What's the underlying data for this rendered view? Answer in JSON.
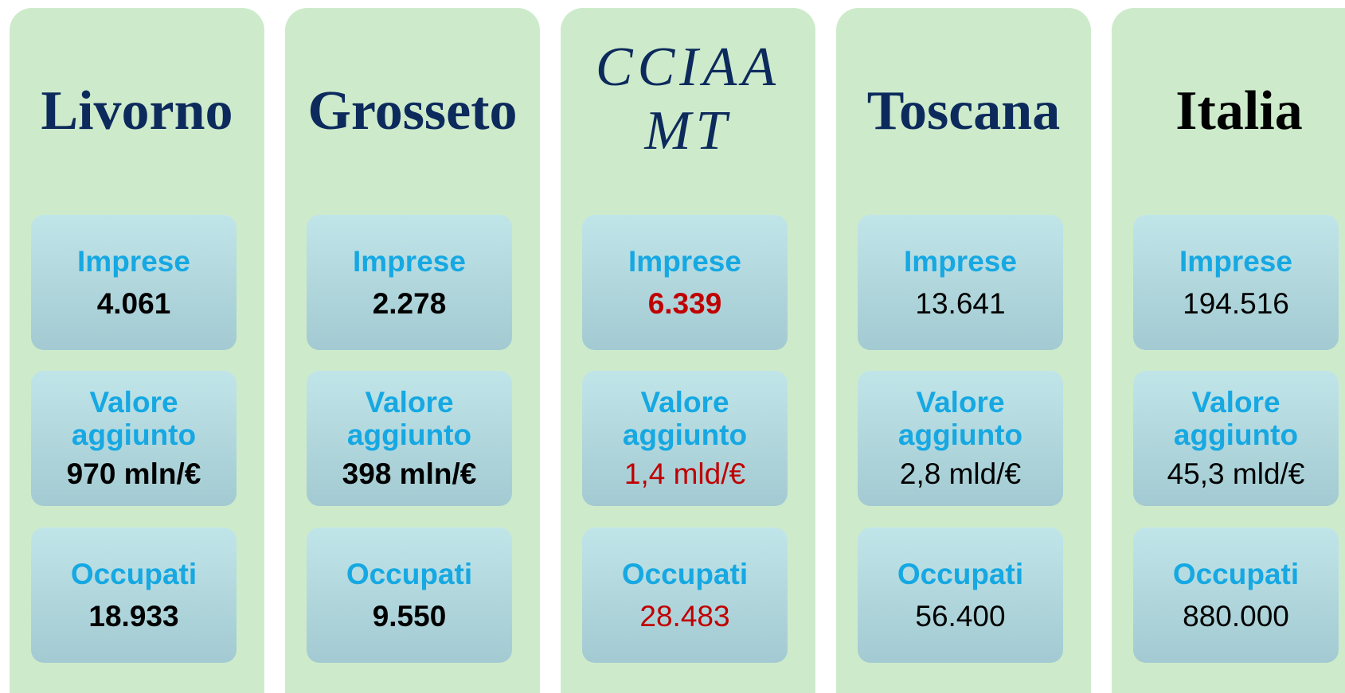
{
  "columns": [
    {
      "title": "Livorno",
      "metrics": [
        {
          "label": "Imprese",
          "value": "4.061"
        },
        {
          "label": "Valore aggiunto",
          "value": "970 mln/€"
        },
        {
          "label": "Occupati",
          "value": "18.933"
        }
      ]
    },
    {
      "title": "Grosseto",
      "metrics": [
        {
          "label": "Imprese",
          "value": "2.278"
        },
        {
          "label": "Valore aggiunto",
          "value": "398 mln/€"
        },
        {
          "label": "Occupati",
          "value": "9.550"
        }
      ]
    },
    {
      "title": "CCIAA MT",
      "metrics": [
        {
          "label": "Imprese",
          "value": "6.339"
        },
        {
          "label": "Valore aggiunto",
          "value": "1,4 mld/€"
        },
        {
          "label": "Occupati",
          "value": "28.483"
        }
      ]
    },
    {
      "title": "Toscana",
      "metrics": [
        {
          "label": "Imprese",
          "value": "13.641"
        },
        {
          "label": "Valore aggiunto",
          "value": "2,8 mld/€"
        },
        {
          "label": "Occupati",
          "value": "56.400"
        }
      ]
    },
    {
      "title": "Italia",
      "metrics": [
        {
          "label": "Imprese",
          "value": "194.516"
        },
        {
          "label": "Valore aggiunto",
          "value": "45,3 mld/€"
        },
        {
          "label": "Occupati",
          "value": "880.000"
        }
      ]
    }
  ]
}
